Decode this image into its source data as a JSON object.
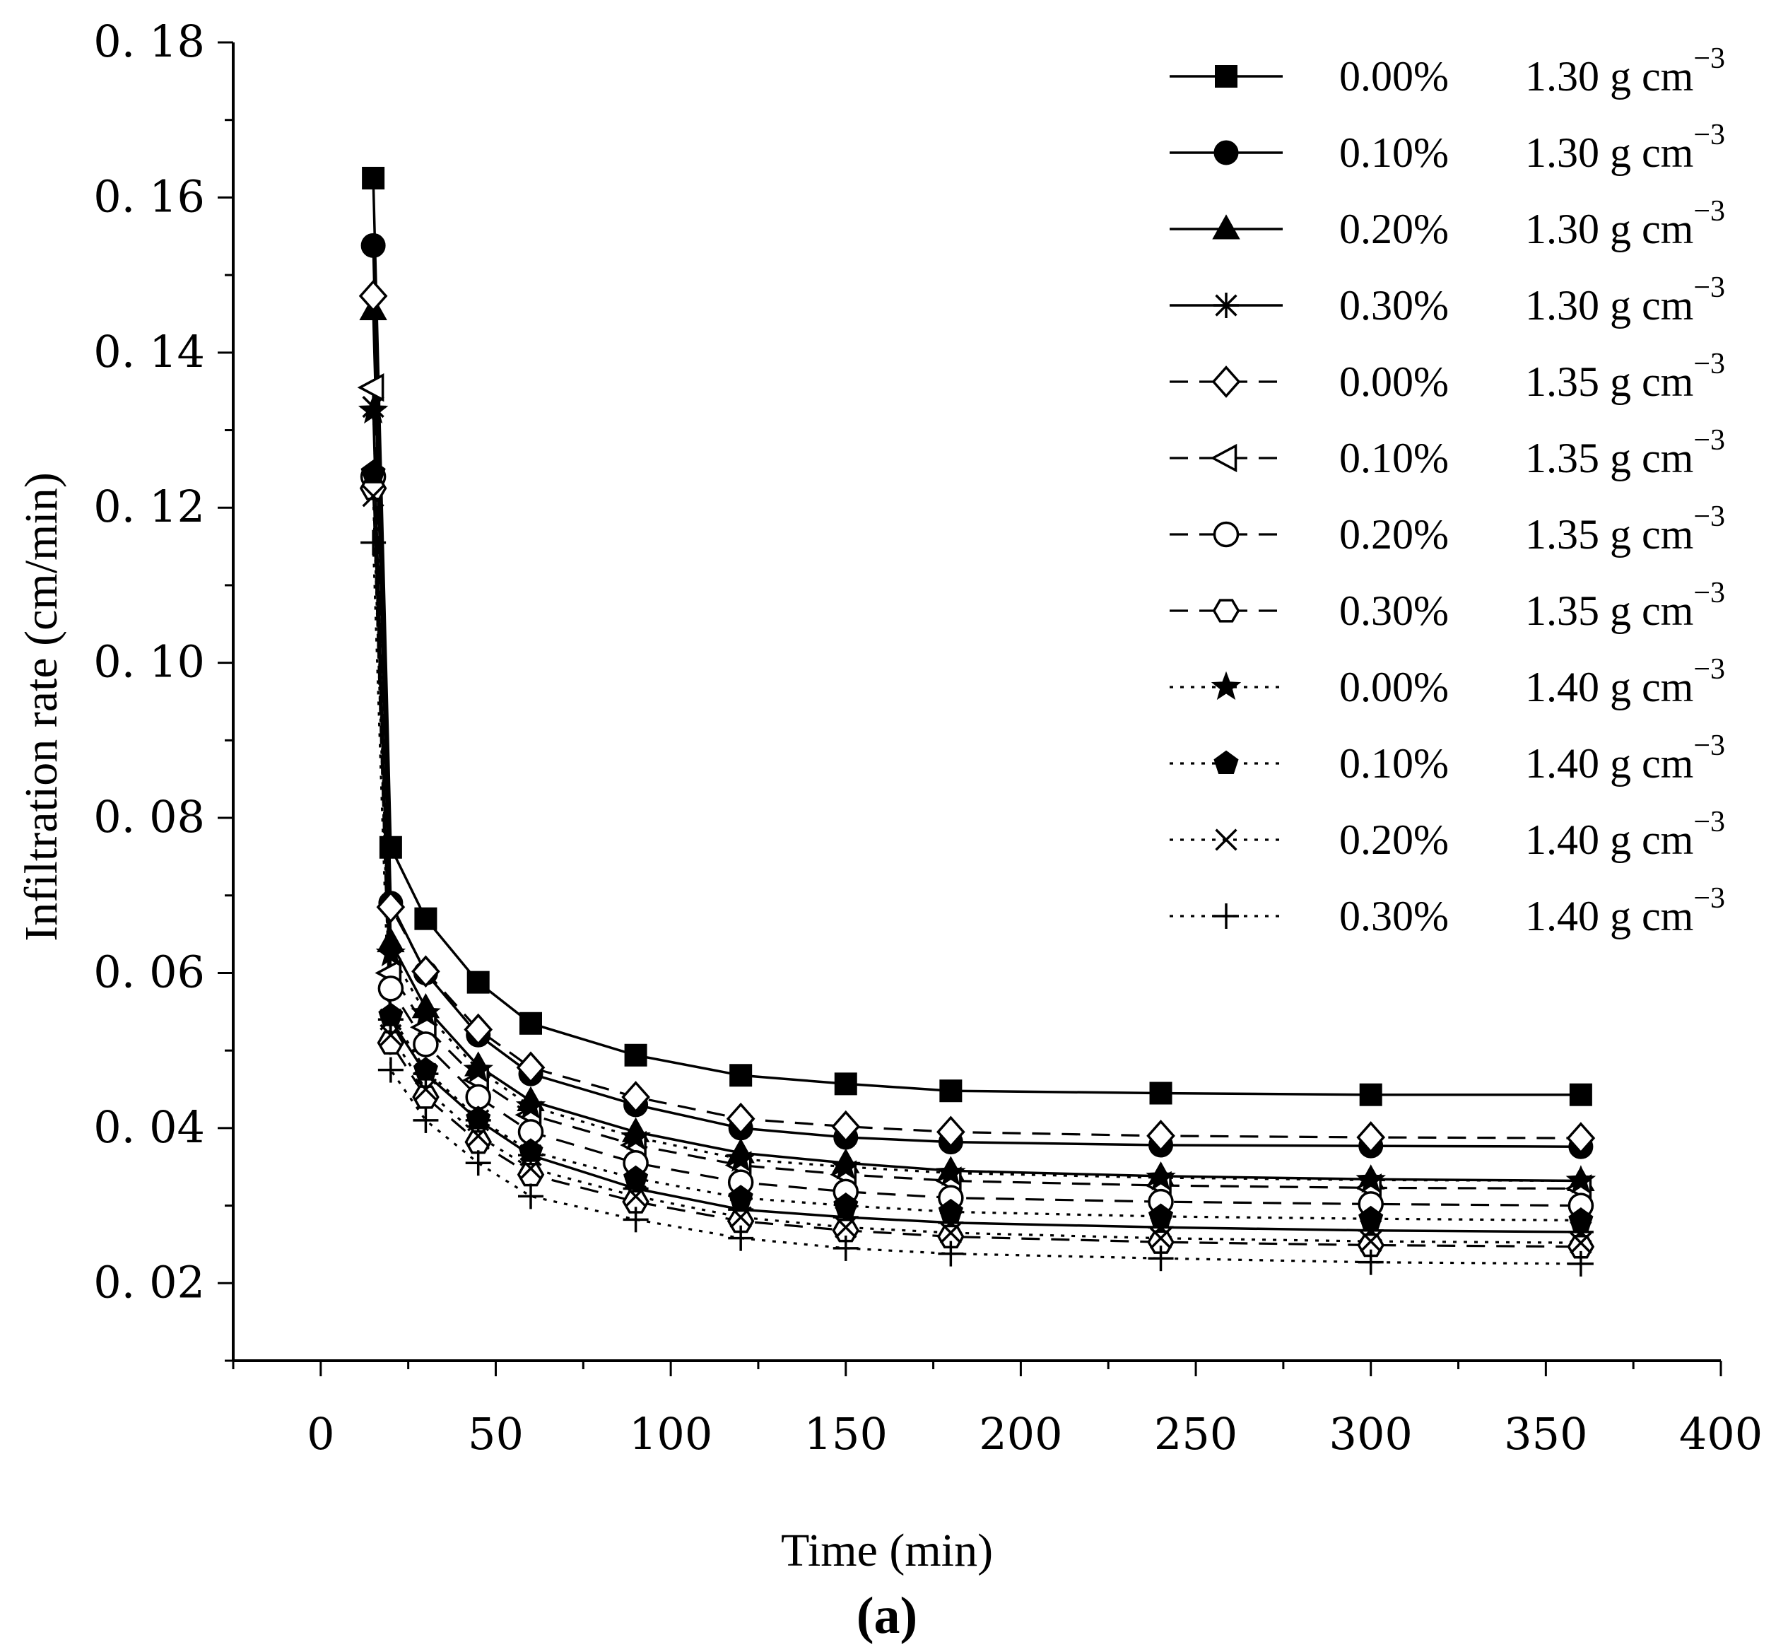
{
  "chart_data": {
    "type": "line",
    "title": "",
    "xlabel": "Time (min)",
    "ylabel": "Infiltration rate (cm/min)",
    "panel_label": "(a)",
    "xlim": [
      -25,
      400
    ],
    "ylim": [
      0.01,
      0.18
    ],
    "xticks": [
      "0",
      "50",
      "100",
      "150",
      "200",
      "250",
      "300",
      "350",
      "400"
    ],
    "yticks": [
      "0. 02",
      "0. 04",
      "0. 06",
      "0. 08",
      "0. 10",
      "0. 12",
      "0. 14",
      "0. 16",
      "0. 18"
    ],
    "x": [
      15,
      20,
      30,
      45,
      60,
      90,
      120,
      150,
      180,
      240,
      300,
      360
    ],
    "legend_unit": "g cm",
    "legend_unit_exp": "−3",
    "legend_position": "top-right",
    "series": [
      {
        "name": "0.00%",
        "density": "1.30",
        "marker": "square",
        "line": "solid",
        "values": [
          0.1625,
          0.0762,
          0.067,
          0.0588,
          0.0535,
          0.0494,
          0.0468,
          0.0457,
          0.0448,
          0.0445,
          0.0443,
          0.0443
        ]
      },
      {
        "name": "0.10%",
        "density": "1.30",
        "marker": "circle-filled",
        "line": "solid",
        "values": [
          0.1538,
          0.069,
          0.06,
          0.052,
          0.047,
          0.043,
          0.04,
          0.0388,
          0.0382,
          0.0378,
          0.0377,
          0.0376
        ]
      },
      {
        "name": "0.20%",
        "density": "1.30",
        "marker": "triangle-filled",
        "line": "solid",
        "values": [
          0.1455,
          0.064,
          0.0555,
          0.048,
          0.0435,
          0.0395,
          0.0368,
          0.0355,
          0.0345,
          0.0338,
          0.0334,
          0.0332
        ]
      },
      {
        "name": "0.30%",
        "density": "1.30",
        "marker": "asterisk",
        "line": "solid",
        "values": [
          0.133,
          0.054,
          0.047,
          0.041,
          0.0365,
          0.0322,
          0.0295,
          0.0285,
          0.0278,
          0.0272,
          0.0268,
          0.0266
        ]
      },
      {
        "name": "0.00%",
        "density": "1.35",
        "marker": "diamond-open",
        "line": "dash",
        "values": [
          0.1473,
          0.0685,
          0.0602,
          0.0527,
          0.0478,
          0.044,
          0.0412,
          0.0402,
          0.0395,
          0.039,
          0.0388,
          0.0387
        ]
      },
      {
        "name": "0.10%",
        "density": "1.35",
        "marker": "triangle-left-open",
        "line": "dash",
        "values": [
          0.1355,
          0.06,
          0.053,
          0.0462,
          0.0417,
          0.0378,
          0.0352,
          0.034,
          0.0332,
          0.0326,
          0.0323,
          0.0322
        ]
      },
      {
        "name": "0.20%",
        "density": "1.35",
        "marker": "circle-open",
        "line": "dash",
        "values": [
          0.124,
          0.058,
          0.0508,
          0.044,
          0.0395,
          0.0355,
          0.033,
          0.0318,
          0.031,
          0.0305,
          0.0302,
          0.03
        ]
      },
      {
        "name": "0.30%",
        "density": "1.35",
        "marker": "hexagon-open",
        "line": "dash",
        "values": [
          0.1225,
          0.051,
          0.044,
          0.0382,
          0.034,
          0.0305,
          0.028,
          0.0268,
          0.026,
          0.0253,
          0.0249,
          0.0247
        ]
      },
      {
        "name": "0.00%",
        "density": "1.40",
        "marker": "star-filled",
        "line": "dot",
        "values": [
          0.1325,
          0.0625,
          0.0548,
          0.0475,
          0.0428,
          0.0388,
          0.036,
          0.035,
          0.0342,
          0.0336,
          0.0333,
          0.0332
        ]
      },
      {
        "name": "0.10%",
        "density": "1.40",
        "marker": "pentagon-filled",
        "line": "dot",
        "values": [
          0.1245,
          0.0545,
          0.0475,
          0.0412,
          0.037,
          0.0335,
          0.031,
          0.03,
          0.0292,
          0.0286,
          0.0283,
          0.0281
        ]
      },
      {
        "name": "0.20%",
        "density": "1.40",
        "marker": "x",
        "line": "dot",
        "values": [
          0.1215,
          0.052,
          0.045,
          0.039,
          0.0348,
          0.0312,
          0.0285,
          0.0272,
          0.0265,
          0.0258,
          0.0254,
          0.0252
        ]
      },
      {
        "name": "0.30%",
        "density": "1.40",
        "marker": "plus",
        "line": "dot",
        "values": [
          0.1155,
          0.0475,
          0.041,
          0.0355,
          0.0312,
          0.0282,
          0.0258,
          0.0245,
          0.0238,
          0.0232,
          0.0227,
          0.0225
        ]
      }
    ]
  }
}
